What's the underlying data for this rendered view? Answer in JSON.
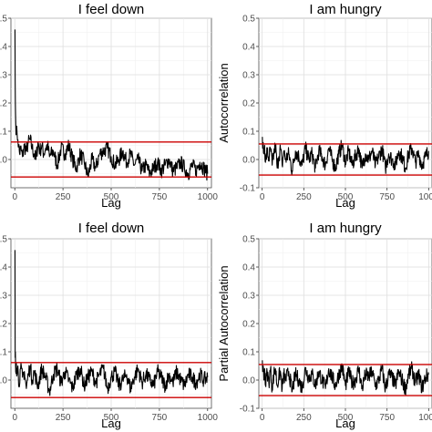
{
  "chart_data": [
    {
      "type": "line",
      "title": "I feel down",
      "xlabel": "Lag",
      "ylabel": "",
      "xlim": [
        -20,
        1020
      ],
      "ylim": [
        -0.1,
        0.5
      ],
      "xticks": [
        0,
        250,
        500,
        750,
        1000
      ],
      "xtick_labels": [
        "0",
        "250",
        "500",
        "750",
        "1000"
      ],
      "yticks": [
        0.0,
        0.1,
        0.2,
        0.3,
        0.4,
        0.5
      ],
      "ytick_labels": [
        ".0",
        ".1",
        ".2",
        ".3",
        ".4",
        ".5"
      ],
      "grid": true,
      "confidence_band": [
        -0.062,
        0.062
      ],
      "line_color": "#000000",
      "band_color": "#cc0000",
      "series": [
        {
          "x": [
            1,
            2,
            3,
            4,
            5,
            8,
            12,
            16,
            20,
            25,
            30,
            40,
            50,
            60,
            70,
            80,
            90,
            100,
            110,
            120,
            130,
            140,
            150,
            160,
            170,
            180,
            200,
            220,
            240,
            260,
            280,
            300,
            320,
            340,
            360,
            380,
            400,
            420,
            440,
            460,
            480,
            500,
            520,
            540,
            560,
            580,
            600,
            620,
            640,
            660,
            680,
            700,
            720,
            740,
            760,
            780,
            800,
            820,
            840,
            860,
            880,
            900,
            920,
            940,
            960,
            980,
            1000
          ],
          "values": [
            0.46,
            0.28,
            0.2,
            0.16,
            0.13,
            0.1,
            0.09,
            0.07,
            0.05,
            0.02,
            0.04,
            0.01,
            0.05,
            0.03,
            0.06,
            0.07,
            0.04,
            0.02,
            0.0,
            0.06,
            0.03,
            0.05,
            0.02,
            0.04,
            0.05,
            0.01,
            0.03,
            -0.02,
            0.04,
            0.02,
            0.05,
            0.0,
            -0.03,
            0.02,
            -0.01,
            -0.06,
            0.0,
            -0.03,
            0.02,
            0.03,
            0.04,
            0.01,
            -0.02,
            0.0,
            0.03,
            -0.01,
            0.02,
            -0.02,
            0.0,
            -0.04,
            -0.02,
            -0.05,
            -0.03,
            -0.01,
            -0.04,
            -0.02,
            0.0,
            -0.04,
            -0.03,
            -0.01,
            -0.03,
            -0.05,
            -0.02,
            -0.04,
            -0.01,
            -0.03,
            -0.05
          ]
        }
      ]
    },
    {
      "type": "line",
      "title": "I am hungry",
      "xlabel": "Lag",
      "ylabel": "Autocorrelation",
      "xlim": [
        -20,
        1020
      ],
      "ylim": [
        -0.1,
        0.5
      ],
      "xticks": [
        0,
        250,
        500,
        750,
        1000
      ],
      "xtick_labels": [
        "0",
        "250",
        "500",
        "750",
        "1000"
      ],
      "yticks": [
        -0.1,
        0.0,
        0.1,
        0.2,
        0.3,
        0.4,
        0.5
      ],
      "ytick_labels": [
        "-0.1",
        "0.0",
        "0.1",
        "0.2",
        "0.3",
        "0.4",
        "0.5"
      ],
      "grid": true,
      "confidence_band": [
        -0.055,
        0.055
      ],
      "line_color": "#000000",
      "band_color": "#cc0000",
      "series": [
        {
          "x": [
            1,
            3,
            6,
            10,
            15,
            20,
            30,
            40,
            50,
            60,
            70,
            80,
            90,
            100,
            110,
            120,
            130,
            140,
            160,
            180,
            200,
            220,
            240,
            260,
            280,
            300,
            320,
            340,
            360,
            380,
            400,
            420,
            440,
            460,
            480,
            500,
            520,
            540,
            560,
            580,
            600,
            620,
            640,
            660,
            680,
            700,
            720,
            740,
            760,
            780,
            800,
            820,
            840,
            860,
            880,
            900,
            920,
            940,
            960,
            980,
            1000
          ],
          "values": [
            0.08,
            0.04,
            0.06,
            0.02,
            0.05,
            -0.01,
            0.03,
            0.0,
            0.04,
            -0.02,
            0.02,
            0.05,
            -0.03,
            0.01,
            0.04,
            -0.02,
            0.03,
            0.0,
            0.02,
            -0.04,
            0.03,
            0.01,
            -0.02,
            0.04,
            0.0,
            0.02,
            -0.03,
            0.03,
            0.01,
            -0.02,
            0.04,
            0.0,
            -0.03,
            0.02,
            0.05,
            -0.01,
            0.03,
            -0.02,
            0.01,
            0.04,
            -0.03,
            0.02,
            0.0,
            0.03,
            -0.02,
            0.01,
            0.04,
            -0.03,
            0.02,
            0.0,
            -0.02,
            0.03,
            0.01,
            -0.03,
            0.02,
            0.04,
            -0.01,
            0.02,
            -0.02,
            0.01,
            0.03
          ]
        }
      ]
    },
    {
      "type": "line",
      "title": "I feel down",
      "xlabel": "Lag",
      "ylabel": "",
      "xlim": [
        -20,
        1020
      ],
      "ylim": [
        -0.1,
        0.5
      ],
      "xticks": [
        0,
        250,
        500,
        750,
        1000
      ],
      "xtick_labels": [
        "0",
        "250",
        "500",
        "750",
        "1000"
      ],
      "yticks": [
        0.0,
        0.1,
        0.2,
        0.3,
        0.4,
        0.5
      ],
      "ytick_labels": [
        ".0",
        ".1",
        ".2",
        ".3",
        ".4",
        ".5"
      ],
      "grid": true,
      "confidence_band": [
        -0.062,
        0.062
      ],
      "line_color": "#000000",
      "band_color": "#cc0000",
      "series": [
        {
          "x": [
            1,
            2,
            3,
            5,
            8,
            12,
            16,
            20,
            30,
            40,
            50,
            60,
            70,
            80,
            90,
            100,
            120,
            140,
            160,
            180,
            200,
            220,
            240,
            260,
            280,
            300,
            320,
            340,
            360,
            380,
            400,
            420,
            440,
            460,
            480,
            500,
            520,
            540,
            560,
            580,
            600,
            620,
            640,
            660,
            680,
            700,
            720,
            740,
            760,
            780,
            800,
            820,
            840,
            860,
            880,
            900,
            920,
            940,
            960,
            980,
            1000
          ],
          "values": [
            0.46,
            0.08,
            0.1,
            0.03,
            0.06,
            0.02,
            0.05,
            -0.02,
            0.04,
            0.01,
            0.03,
            -0.03,
            0.02,
            0.05,
            0.0,
            0.03,
            -0.02,
            0.04,
            0.01,
            -0.04,
            0.02,
            0.04,
            -0.01,
            0.03,
            0.0,
            -0.03,
            0.02,
            0.04,
            -0.02,
            0.01,
            0.03,
            -0.01,
            0.02,
            0.04,
            -0.03,
            0.01,
            0.03,
            -0.02,
            0.0,
            0.02,
            -0.03,
            0.01,
            0.04,
            -0.01,
            0.02,
            0.0,
            -0.02,
            0.03,
            0.01,
            -0.02,
            0.02,
            -0.01,
            0.03,
            0.0,
            -0.02,
            0.02,
            0.01,
            -0.01,
            0.02,
            0.0,
            0.01
          ]
        }
      ]
    },
    {
      "type": "line",
      "title": "I am hungry",
      "xlabel": "Lag",
      "ylabel": "Partial Autocorrelation",
      "xlim": [
        -20,
        1020
      ],
      "ylim": [
        -0.1,
        0.5
      ],
      "xticks": [
        0,
        250,
        500,
        750,
        1000
      ],
      "xtick_labels": [
        "0",
        "250",
        "500",
        "750",
        "1000"
      ],
      "yticks": [
        -0.1,
        0.0,
        0.1,
        0.2,
        0.3,
        0.4,
        0.5
      ],
      "ytick_labels": [
        "-0.1",
        "0.0",
        "0.1",
        "0.2",
        "0.3",
        "0.4",
        "0.5"
      ],
      "grid": true,
      "confidence_band": [
        -0.055,
        0.055
      ],
      "line_color": "#000000",
      "band_color": "#cc0000",
      "series": [
        {
          "x": [
            1,
            3,
            6,
            10,
            15,
            20,
            30,
            40,
            50,
            60,
            70,
            80,
            90,
            100,
            110,
            120,
            130,
            140,
            160,
            180,
            200,
            220,
            240,
            260,
            280,
            300,
            320,
            340,
            360,
            380,
            400,
            420,
            440,
            460,
            480,
            500,
            520,
            540,
            560,
            580,
            600,
            620,
            640,
            660,
            680,
            700,
            720,
            740,
            760,
            780,
            800,
            820,
            840,
            860,
            880,
            900,
            920,
            940,
            960,
            980,
            1000
          ],
          "values": [
            0.07,
            0.03,
            0.05,
            0.0,
            0.04,
            -0.02,
            0.03,
            -0.01,
            0.04,
            -0.03,
            0.02,
            0.04,
            -0.02,
            0.01,
            0.03,
            -0.03,
            0.02,
            0.0,
            0.03,
            -0.04,
            0.02,
            0.0,
            -0.03,
            0.04,
            0.01,
            0.02,
            -0.02,
            0.03,
            0.0,
            -0.03,
            0.04,
            0.01,
            -0.02,
            0.02,
            0.05,
            -0.02,
            0.03,
            -0.01,
            0.0,
            0.04,
            -0.03,
            0.02,
            0.01,
            0.03,
            -0.02,
            0.0,
            0.04,
            -0.03,
            0.02,
            0.01,
            -0.02,
            0.03,
            0.0,
            -0.03,
            0.02,
            0.04,
            -0.01,
            0.02,
            -0.03,
            0.01,
            0.02
          ]
        }
      ]
    }
  ]
}
